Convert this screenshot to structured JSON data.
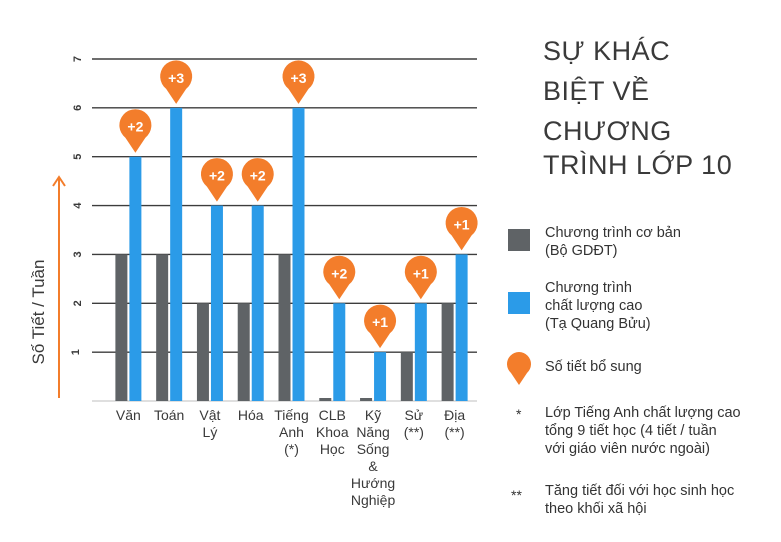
{
  "title_lines": [
    "SỰ KHÁC",
    "BIỆT VỀ",
    "CHƯƠNG",
    "TRÌNH LỚP 10"
  ],
  "colors": {
    "basic": "#5f6366",
    "high_quality": "#2b9be8",
    "bonus": "#f37d2b",
    "text": "#3a3a3a"
  },
  "legend": {
    "basic": [
      "Chương trình cơ bản",
      "(Bộ GDĐT)"
    ],
    "high_quality": [
      "Chương trình",
      "chất lượng cao",
      "(Tạ Quang Bửu)"
    ],
    "bonus": "Số tiết bổ sung",
    "bonus_icon": "map-pin-icon"
  },
  "notes": [
    {
      "mark": "*",
      "lines": [
        "Lớp Tiếng Anh chất lượng cao",
        "tổng 9 tiết học (4 tiết / tuần",
        "với giáo viên nước ngoài)"
      ]
    },
    {
      "mark": "**",
      "lines": [
        "Tăng tiết đối với học sinh học",
        "theo khối xã hội"
      ]
    }
  ],
  "chart_data": {
    "type": "bar",
    "ylabel": "Số Tiết / Tuần",
    "ylim": [
      0,
      7
    ],
    "yticks": [
      1,
      2,
      3,
      4,
      5,
      6,
      7
    ],
    "grid": true,
    "categories": [
      [
        "Văn"
      ],
      [
        "Toán"
      ],
      [
        "Vật",
        "Lý"
      ],
      [
        "Hóa"
      ],
      [
        "Tiếng",
        "Anh",
        "(*)"
      ],
      [
        "CLB",
        "Khoa",
        "Học"
      ],
      [
        "Kỹ",
        "Năng",
        "Sống",
        "&",
        "Hướng",
        "Nghiệp"
      ],
      [
        "Sử",
        "(**)"
      ],
      [
        "Địa",
        "(**)"
      ]
    ],
    "series": [
      {
        "name": "Chương trình cơ bản (Bộ GDĐT)",
        "values": [
          3,
          3,
          2,
          2,
          3,
          0,
          0,
          1,
          2
        ]
      },
      {
        "name": "Chương trình chất lượng cao (Tạ Quang Bửu)",
        "values": [
          5,
          6,
          4,
          4,
          6,
          2,
          1,
          2,
          3
        ]
      }
    ],
    "bonus_labels": [
      "+2",
      "+3",
      "+2",
      "+2",
      "+3",
      "+2",
      "+1",
      "+1",
      "+1"
    ]
  }
}
